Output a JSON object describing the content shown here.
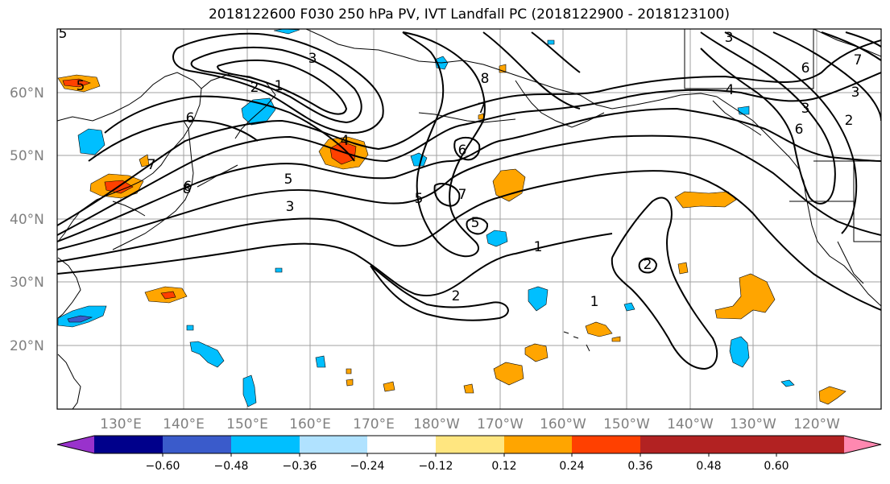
{
  "title": "2018122600 F030 250 hPa PV, IVT Landfall PC (2018122900 - 2018123100)",
  "lat_labels": [
    "60°N",
    "50°N",
    "40°N",
    "30°N",
    "20°N"
  ],
  "lon_labels": [
    "130°E",
    "140°E",
    "150°E",
    "160°E",
    "170°E",
    "180°W",
    "170°W",
    "160°W",
    "150°W",
    "140°W",
    "130°W",
    "120°W"
  ],
  "colorbar": {
    "tick_labels": [
      "−0.60",
      "−0.48",
      "−0.36",
      "−0.24",
      "−0.12",
      "0.12",
      "0.24",
      "0.36",
      "0.48",
      "0.60"
    ],
    "colors": [
      "#9932cc",
      "#00008b",
      "#3a5bcb",
      "#00bfff",
      "#b0e2ff",
      "#ffffff",
      "#ffe680",
      "#ffa500",
      "#ff4000",
      "#b22222",
      "#ff88b0"
    ]
  },
  "contour_labels": [
    "5",
    "3",
    "2",
    "1",
    "6",
    "4",
    "3",
    "5",
    "7",
    "6",
    "8",
    "7",
    "6",
    "5",
    "7",
    "5",
    "1",
    "2",
    "1",
    "2",
    "3",
    "4",
    "6",
    "2",
    "6",
    "7",
    "3",
    "5",
    "3",
    "8"
  ]
}
